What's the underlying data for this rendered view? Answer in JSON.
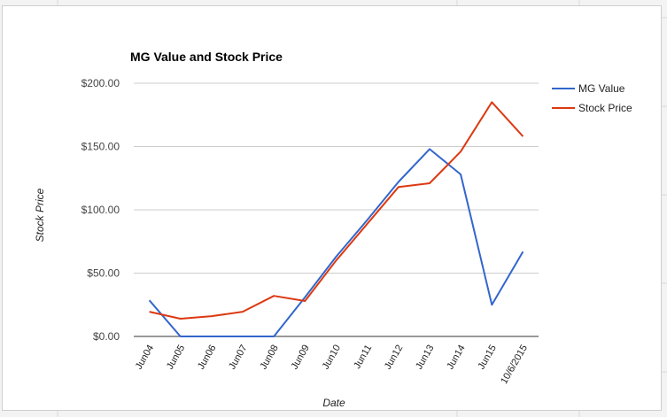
{
  "chart_data": {
    "type": "line",
    "title": "MG Value and Stock Price",
    "xlabel": "Date",
    "ylabel": "Stock Price",
    "categories": [
      "Jun04",
      "Jun05",
      "Jun06",
      "Jun07",
      "Jun08",
      "Jun09",
      "Jun10",
      "Jun11",
      "Jun12",
      "Jun13",
      "Jun14",
      "Jun15",
      "10/6/2015"
    ],
    "ylim": [
      0,
      200
    ],
    "yticks": [
      "$0.00",
      "$50.00",
      "$100.00",
      "$150.00",
      "$200.00"
    ],
    "ytick_values": [
      0,
      50,
      100,
      150,
      200
    ],
    "grid": true,
    "legend_position": "right",
    "series": [
      {
        "name": "MG Value",
        "color": "#3366cc",
        "values": [
          28.5,
          0,
          0,
          0,
          0,
          31,
          63,
          92,
          122,
          148,
          128,
          25,
          67
        ]
      },
      {
        "name": "Stock Price",
        "color": "#dc3912",
        "values": [
          19.5,
          14,
          16,
          19.5,
          32,
          28,
          60,
          89,
          118,
          121,
          146,
          185,
          158
        ]
      }
    ]
  }
}
